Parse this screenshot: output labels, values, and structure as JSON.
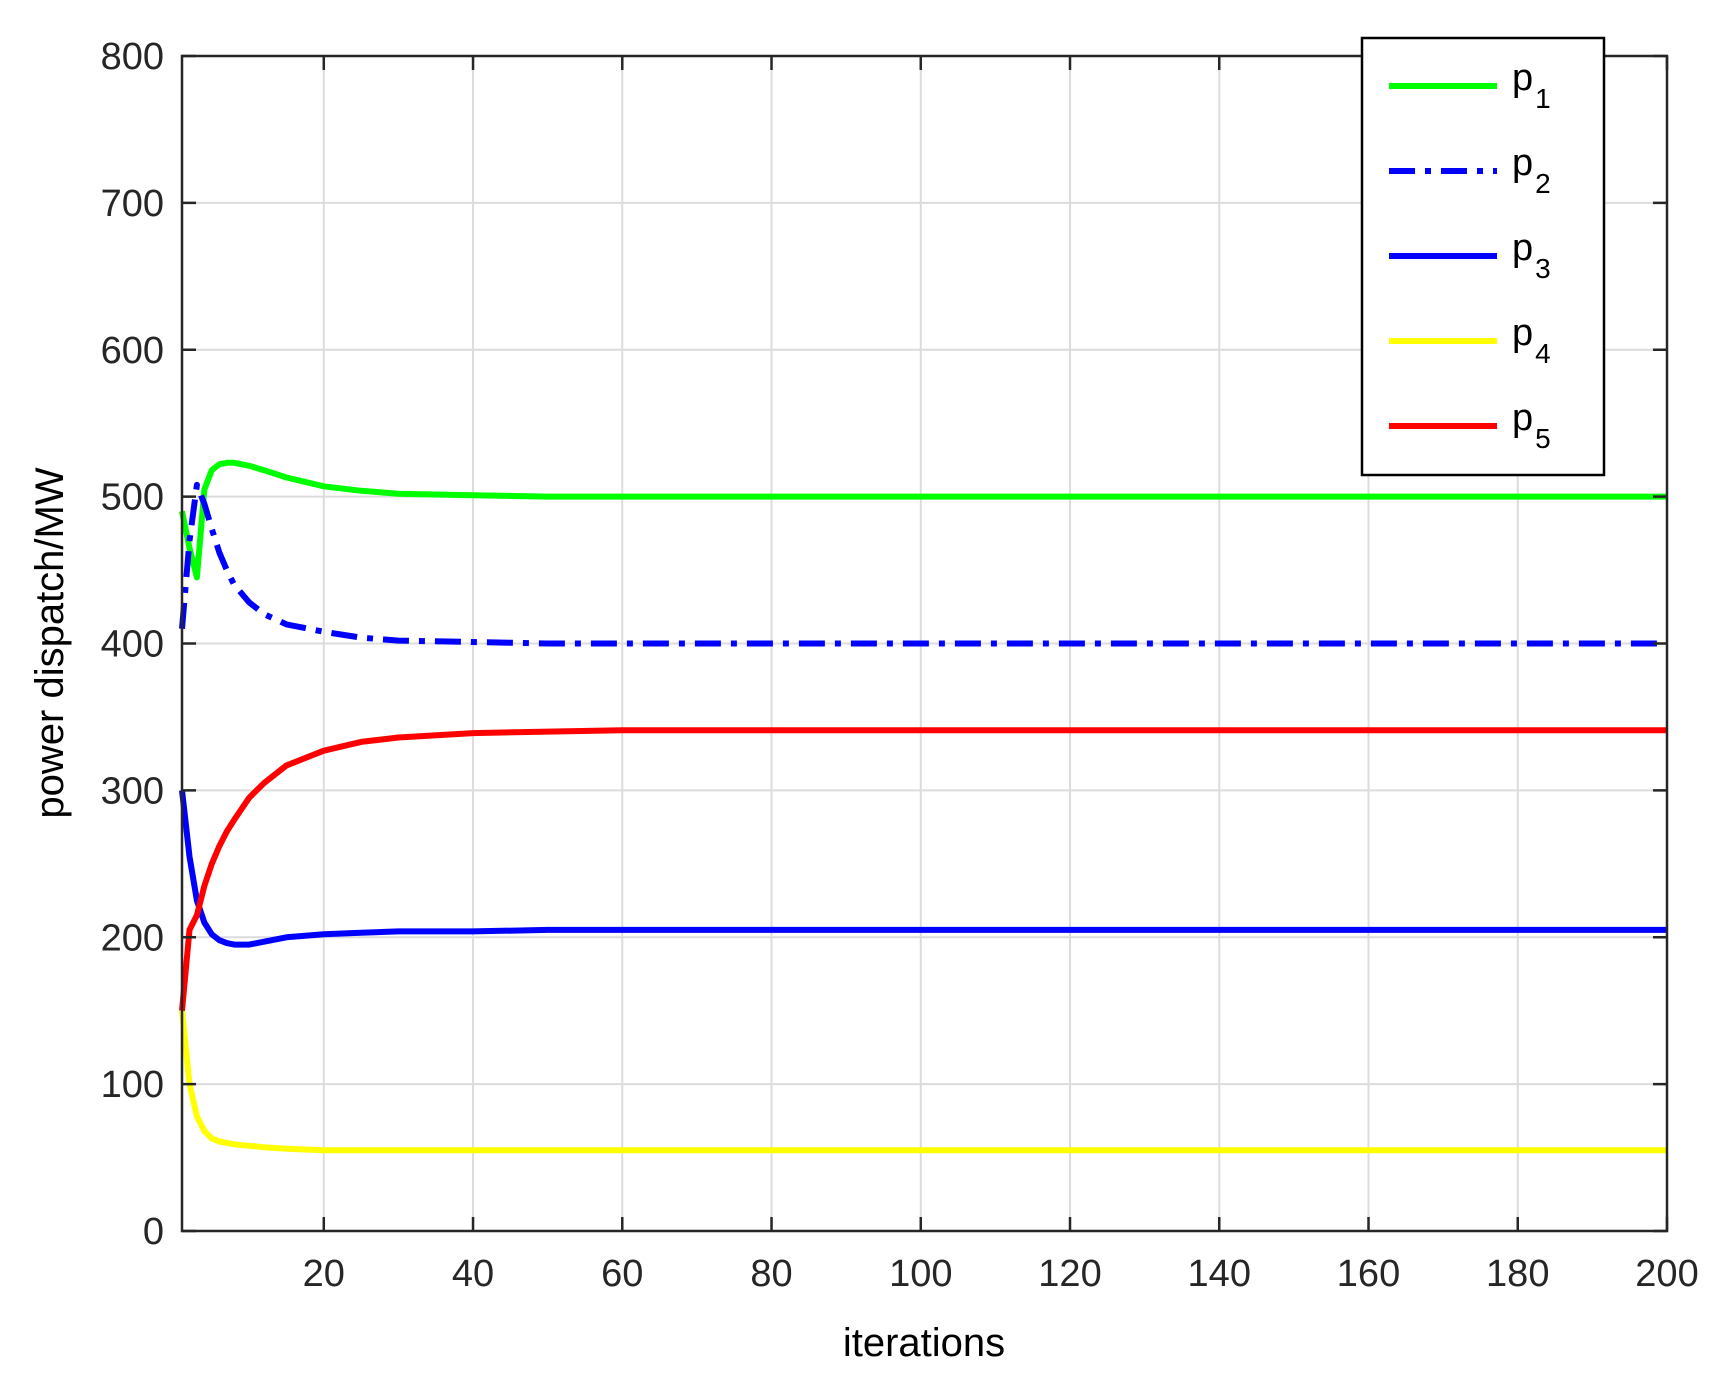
{
  "chart_data": {
    "type": "line",
    "xlabel": "iterations",
    "ylabel": "power dispatch/MW",
    "xlim": [
      1,
      200
    ],
    "ylim": [
      0,
      800
    ],
    "xticks": [
      20,
      40,
      60,
      80,
      100,
      120,
      140,
      160,
      180,
      200
    ],
    "yticks": [
      0,
      100,
      200,
      300,
      400,
      500,
      600,
      700,
      800
    ],
    "grid": true,
    "legend_position": "top-right",
    "x": [
      1,
      2,
      3,
      4,
      5,
      6,
      7,
      8,
      10,
      12,
      15,
      20,
      25,
      30,
      40,
      50,
      60,
      80,
      100,
      150,
      200
    ],
    "series": [
      {
        "name": "p",
        "subscript": "1",
        "color": "#00ff00",
        "dash": "solid",
        "values": [
          490,
          465,
          445,
          505,
          518,
          522,
          523,
          523,
          521,
          518,
          513,
          507,
          504,
          502,
          501,
          500,
          500,
          500,
          500,
          500,
          500
        ]
      },
      {
        "name": "p",
        "subscript": "2",
        "color": "#0000ff",
        "dash": "dashdot",
        "values": [
          410,
          470,
          508,
          495,
          478,
          462,
          450,
          440,
          428,
          420,
          413,
          408,
          404,
          402,
          401,
          400,
          400,
          400,
          400,
          400,
          400
        ]
      },
      {
        "name": "p",
        "subscript": "3",
        "color": "#0000ff",
        "dash": "solid",
        "values": [
          300,
          255,
          225,
          210,
          202,
          198,
          196,
          195,
          195,
          197,
          200,
          202,
          203,
          204,
          204,
          205,
          205,
          205,
          205,
          205,
          205
        ]
      },
      {
        "name": "p",
        "subscript": "4",
        "color": "#ffff00",
        "dash": "solid",
        "values": [
          150,
          100,
          78,
          68,
          63,
          61,
          60,
          59,
          58,
          57,
          56,
          55,
          55,
          55,
          55,
          55,
          55,
          55,
          55,
          55,
          55
        ]
      },
      {
        "name": "p",
        "subscript": "5",
        "color": "#ff0000",
        "dash": "solid",
        "values": [
          150,
          205,
          215,
          235,
          250,
          262,
          272,
          280,
          295,
          305,
          317,
          327,
          333,
          336,
          339,
          340,
          341,
          341,
          341,
          341,
          341
        ]
      }
    ]
  }
}
